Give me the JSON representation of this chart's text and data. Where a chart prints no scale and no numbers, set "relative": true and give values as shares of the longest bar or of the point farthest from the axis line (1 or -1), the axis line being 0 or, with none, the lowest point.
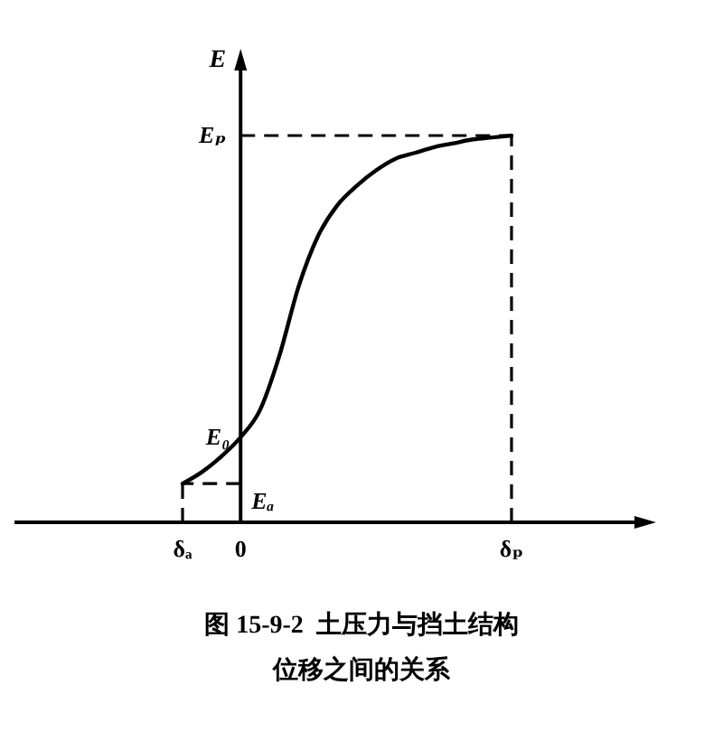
{
  "chart_data": {
    "type": "line",
    "relative": true,
    "title": "图 15-9-2  土压力与挡土结构位移之间的关系",
    "ylabel": "E",
    "categories": [
      "δₐ",
      null,
      null,
      "0",
      null,
      null,
      null,
      null,
      null,
      null,
      null,
      null,
      null,
      null,
      null,
      null,
      null,
      "δₚ"
    ],
    "series": [
      {
        "color": "#000000",
        "values": [
          0.1,
          0.13,
          0.17,
          0.22,
          0.29,
          0.43,
          0.61,
          0.74,
          0.82,
          0.87,
          0.91,
          0.94,
          0.955,
          0.97,
          0.98,
          0.99,
          0.995,
          1.0
        ]
      }
    ],
    "ref_lines": [
      {
        "axis": "y",
        "value": 1.0,
        "label": "Eₚ",
        "line_style": "dashed"
      },
      {
        "axis": "y",
        "value": 0.1,
        "label": "Eₐ",
        "line_style": "dashed"
      },
      {
        "axis": "x",
        "value": "δₐ",
        "line_style": "dashed"
      },
      {
        "axis": "x",
        "value": "δₚ",
        "line_style": "dashed"
      }
    ],
    "annotations": [
      {
        "text": "E₀",
        "x": "0",
        "y": 0.22
      }
    ],
    "line_style": "solid"
  }
}
